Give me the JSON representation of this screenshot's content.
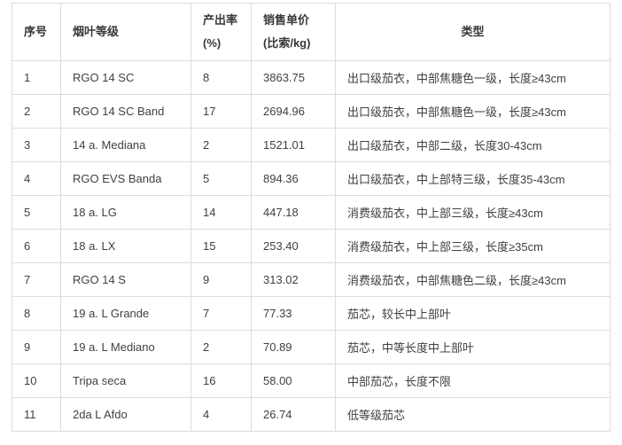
{
  "table": {
    "headers": [
      {
        "id": "index",
        "lines": [
          "序号"
        ]
      },
      {
        "id": "grade",
        "lines": [
          "烟叶等级"
        ]
      },
      {
        "id": "yield",
        "lines": [
          "产出率",
          "(%)"
        ]
      },
      {
        "id": "price",
        "lines": [
          "销售单价",
          "(比索/kg)"
        ]
      },
      {
        "id": "type",
        "lines": [
          "类型"
        ]
      }
    ],
    "rows": [
      [
        "1",
        "RGO 14 SC",
        "8",
        "3863.75",
        "出口级茄衣，中部焦糖色一级，长度≥43cm"
      ],
      [
        "2",
        "RGO 14 SC Band",
        "17",
        "2694.96",
        "出口级茄衣，中部焦糖色一级，长度≥43cm"
      ],
      [
        "3",
        "14 a. Mediana",
        "2",
        "1521.01",
        "出口级茄衣，中部二级，长度30-43cm"
      ],
      [
        "4",
        "RGO EVS Banda",
        "5",
        "894.36",
        "出口级茄衣，中上部特三级，长度35-43cm"
      ],
      [
        "5",
        "18 a. LG",
        "14",
        "447.18",
        "消费级茄衣，中上部三级，长度≥43cm"
      ],
      [
        "6",
        "18 a. LX",
        "15",
        "253.40",
        "消费级茄衣，中上部三级，长度≥35cm"
      ],
      [
        "7",
        "RGO 14 S",
        "9",
        "313.02",
        "消费级茄衣，中部焦糖色二级，长度≥43cm"
      ],
      [
        "8",
        "19 a. L Grande",
        "7",
        "77.33",
        "茄芯，较长中上部叶"
      ],
      [
        "9",
        "19 a. L Mediano",
        "2",
        "70.89",
        "茄芯，中等长度中上部叶"
      ],
      [
        "10",
        "Tripa seca",
        "16",
        "58.00",
        "中部茄芯，长度不限"
      ],
      [
        "11",
        "2da L Afdo",
        "4",
        "26.74",
        "低等级茄芯"
      ]
    ],
    "colors": {
      "border": "#dcdcdc",
      "text": "#404040",
      "header_text": "#383838",
      "background": "#ffffff"
    }
  }
}
